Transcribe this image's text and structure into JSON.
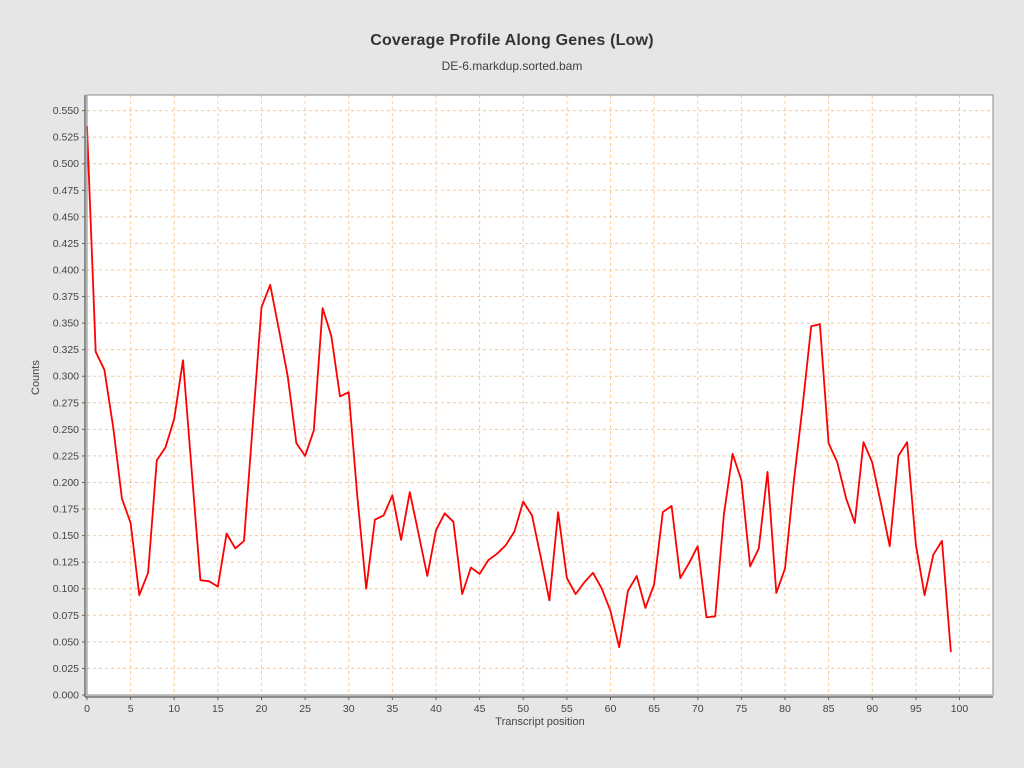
{
  "chart_data": {
    "type": "line",
    "title": "Coverage Profile Along Genes (Low)",
    "subtitle": "DE-6.markdup.sorted.bam",
    "xlabel": "Transcript position",
    "ylabel": "Counts",
    "xlim": [
      0,
      103.84
    ],
    "ylim": [
      0,
      0.5647
    ],
    "grid": true,
    "legend": "none",
    "x_ticks": [
      0,
      5,
      10,
      15,
      20,
      25,
      30,
      35,
      40,
      45,
      50,
      55,
      60,
      65,
      70,
      75,
      80,
      85,
      90,
      95,
      100
    ],
    "y_tick_start": 0,
    "y_tick_step": 0.025,
    "y_tick_count": 23,
    "y_tick_format_decimals": 3,
    "series": [
      {
        "name": "coverage",
        "x_start": 0,
        "x_step": 1,
        "values": [
          0.535,
          0.323,
          0.306,
          0.252,
          0.185,
          0.162,
          0.094,
          0.115,
          0.221,
          0.233,
          0.26,
          0.315,
          0.211,
          0.108,
          0.107,
          0.102,
          0.152,
          0.138,
          0.145,
          0.255,
          0.365,
          0.386,
          0.344,
          0.3,
          0.237,
          0.225,
          0.249,
          0.364,
          0.338,
          0.281,
          0.285,
          0.185,
          0.1,
          0.165,
          0.169,
          0.188,
          0.146,
          0.191,
          0.152,
          0.112,
          0.155,
          0.171,
          0.163,
          0.095,
          0.12,
          0.114,
          0.127,
          0.133,
          0.141,
          0.154,
          0.182,
          0.169,
          0.13,
          0.089,
          0.172,
          0.11,
          0.095,
          0.106,
          0.115,
          0.1,
          0.079,
          0.045,
          0.098,
          0.112,
          0.082,
          0.104,
          0.172,
          0.178,
          0.11,
          0.124,
          0.14,
          0.073,
          0.074,
          0.17,
          0.227,
          0.202,
          0.121,
          0.138,
          0.21,
          0.096,
          0.119,
          0.2,
          0.27,
          0.347,
          0.349,
          0.237,
          0.219,
          0.185,
          0.162,
          0.238,
          0.219,
          0.18,
          0.14,
          0.225,
          0.238,
          0.141,
          0.094,
          0.132,
          0.145,
          0.041
        ]
      }
    ],
    "colors": {
      "series_line": "#fe0000",
      "grid": "#f9c896",
      "plot_background": "#ffffff",
      "chart_background": "#e6e6e6",
      "plot_border": "#8a8a8a",
      "axis_line": "#555555",
      "tick_mark": "#666666",
      "tick_label": "#444444",
      "title": "#333333",
      "subtitle": "#404040"
    }
  }
}
